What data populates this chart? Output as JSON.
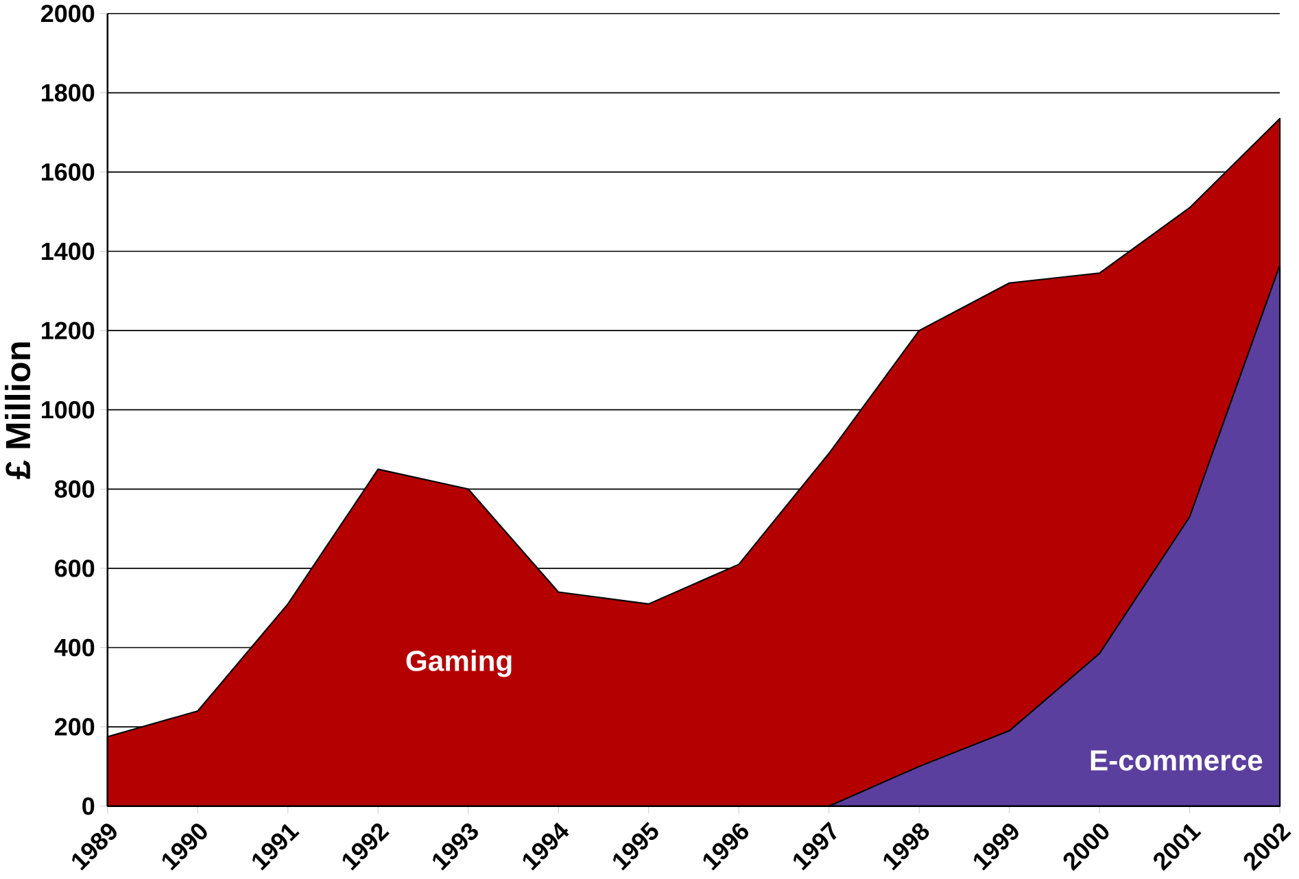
{
  "chart_data": {
    "type": "area",
    "ylabel": "£ Million",
    "categories": [
      "1989",
      "1990",
      "1991",
      "1992",
      "1993",
      "1994",
      "1995",
      "1996",
      "1997",
      "1998",
      "1999",
      "2000",
      "2001",
      "2002"
    ],
    "series": [
      {
        "name": "Gaming",
        "color": "#b40000",
        "values": [
          175,
          240,
          510,
          850,
          800,
          540,
          510,
          610,
          890,
          1200,
          1320,
          1345,
          1510,
          1735
        ]
      },
      {
        "name": "E-commerce",
        "color": "#5b3f9e",
        "values": [
          null,
          null,
          null,
          null,
          null,
          null,
          null,
          null,
          0,
          100,
          190,
          385,
          730,
          1365
        ]
      }
    ],
    "ylim": [
      0,
      2000
    ],
    "yticks": [
      0,
      200,
      400,
      600,
      800,
      1000,
      1200,
      1400,
      1600,
      1800,
      2000
    ],
    "grid": "y",
    "legend": false
  }
}
